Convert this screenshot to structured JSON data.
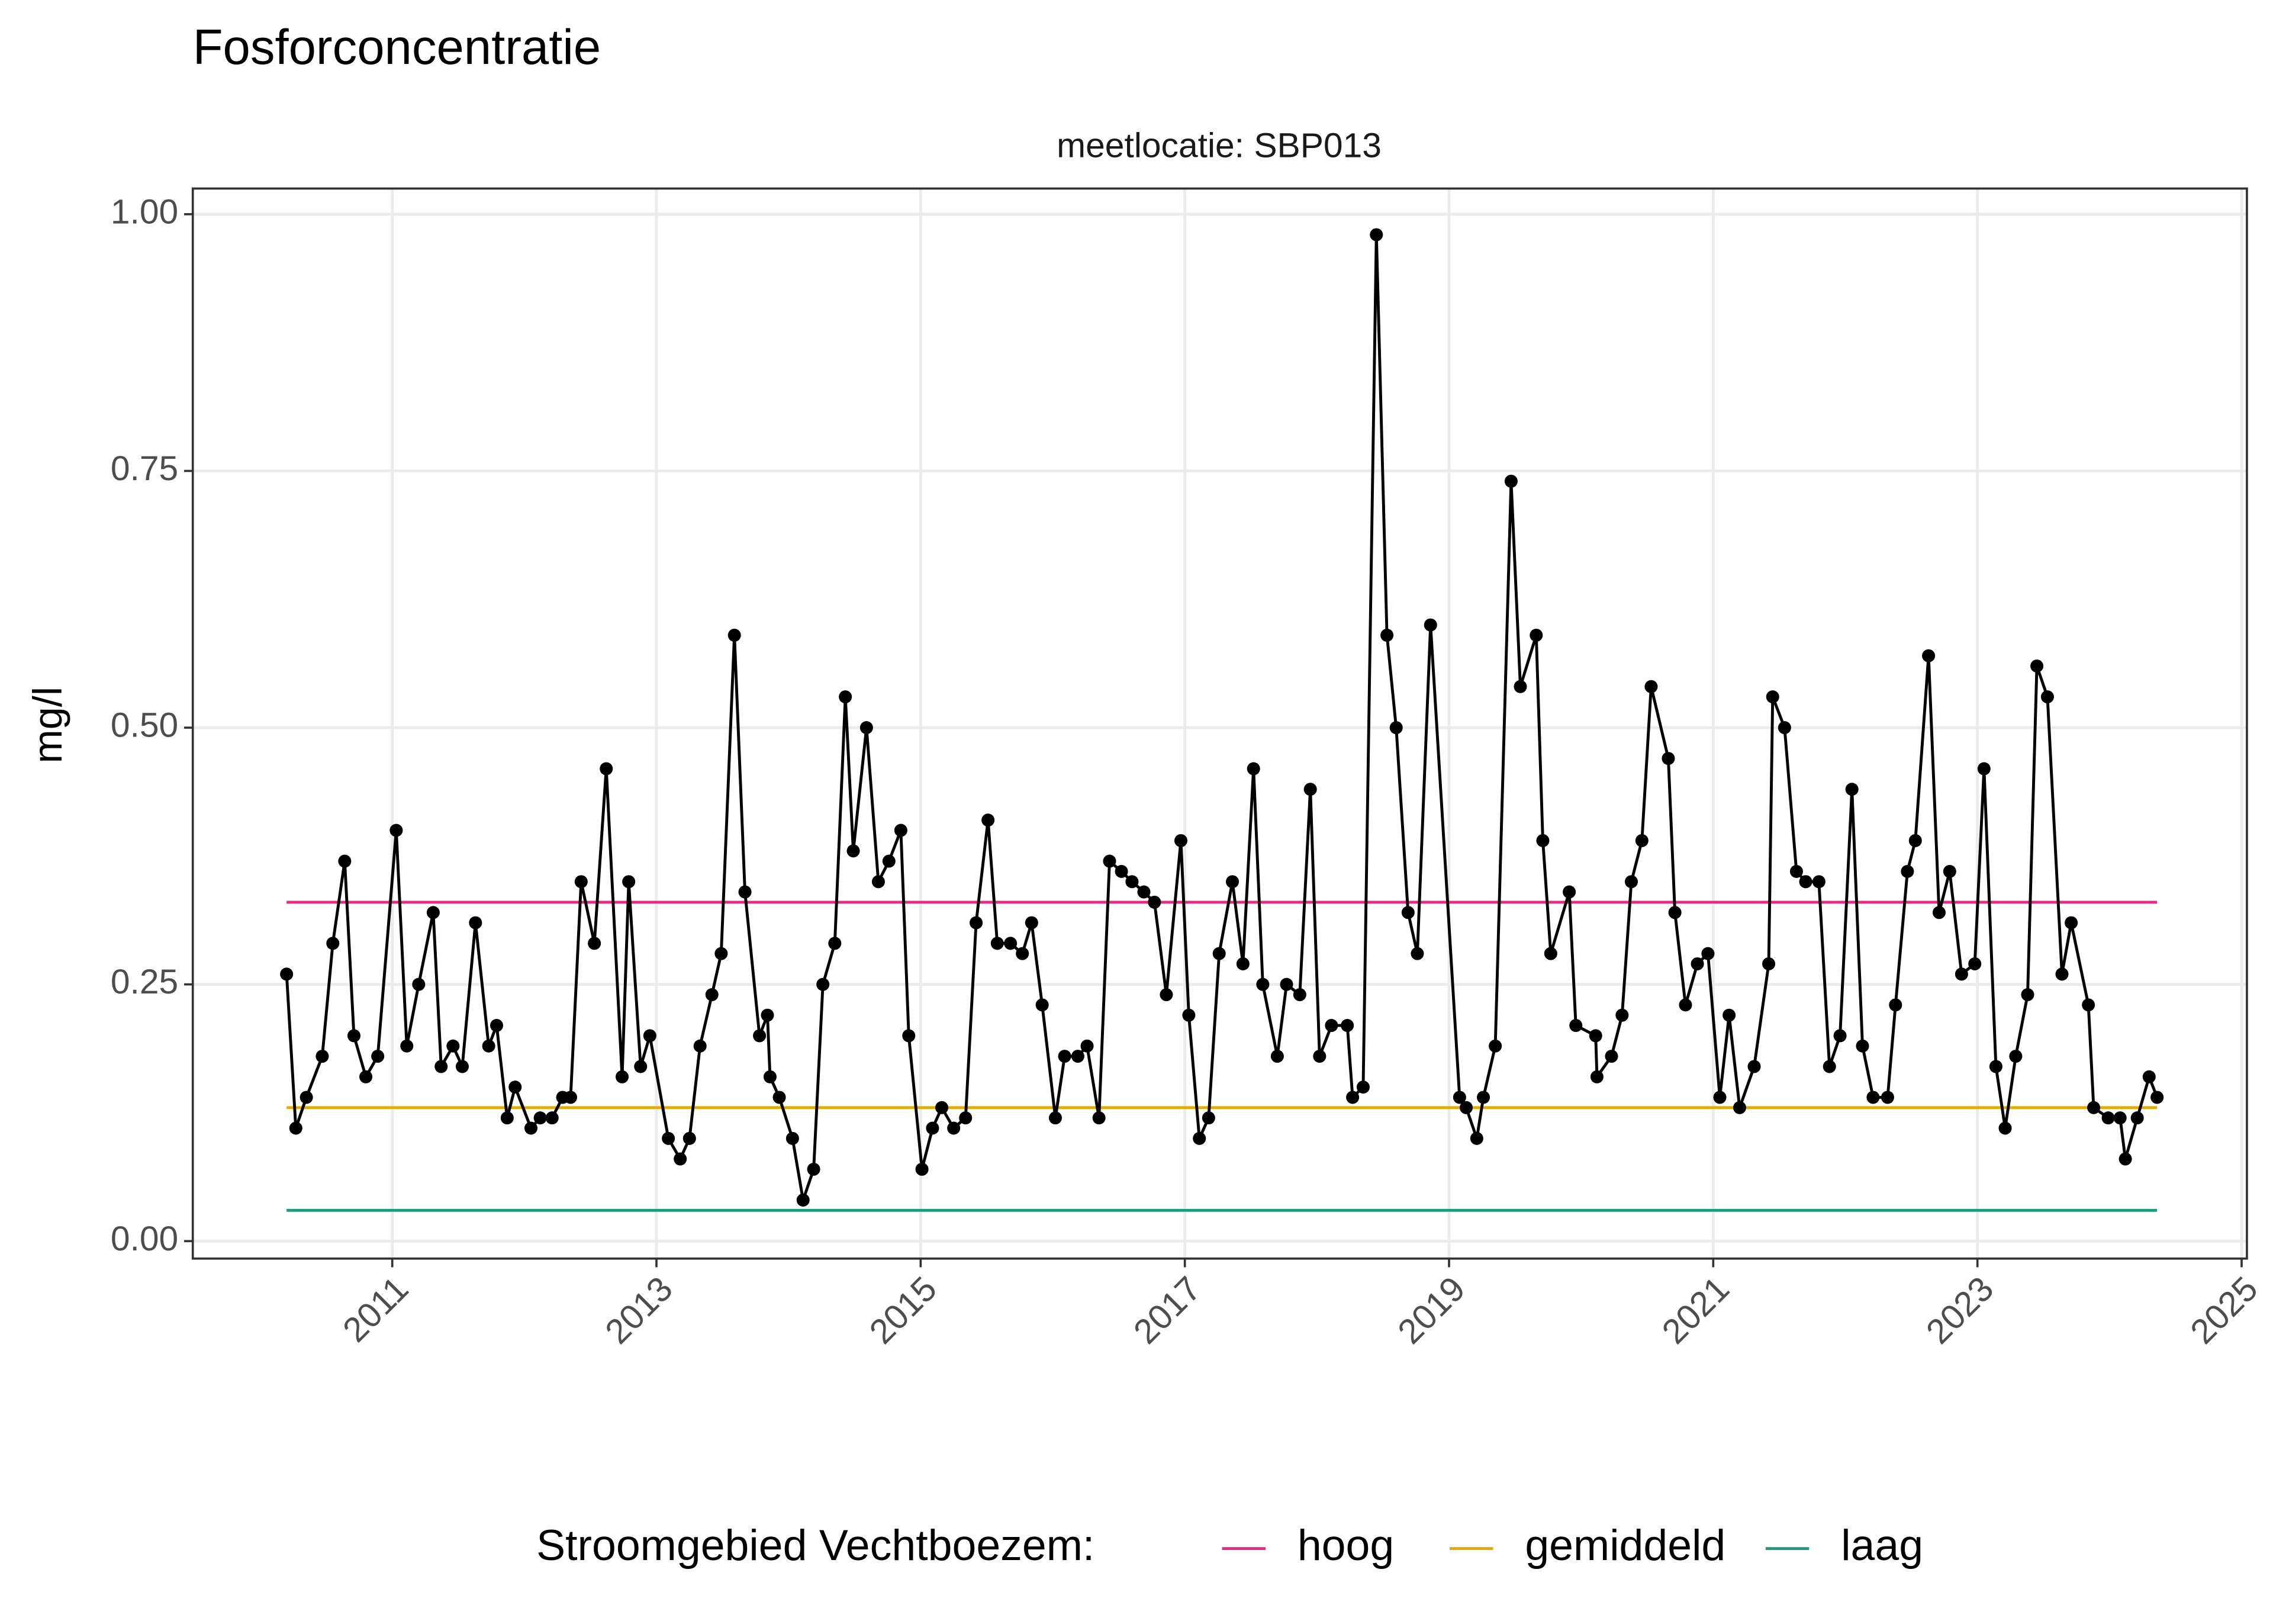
{
  "chart_data": {
    "type": "line",
    "title": "Fosforconcentratie",
    "subtitle": "meetlocatie: SBP013",
    "y_label": "mg/l",
    "legend_title": "Stroomgebied Vechtboezem:",
    "color": "#000000",
    "x": [
      2010.2,
      2010.27,
      2010.35,
      2010.47,
      2010.55,
      2010.64,
      2010.71,
      2010.8,
      2010.89,
      2011.03,
      2011.11,
      2011.2,
      2011.31,
      2011.37,
      2011.46,
      2011.53,
      2011.63,
      2011.73,
      2011.79,
      2011.87,
      2011.93,
      2012.05,
      2012.12,
      2012.21,
      2012.29,
      2012.35,
      2012.43,
      2012.53,
      2012.62,
      2012.74,
      2012.79,
      2012.88,
      2012.95,
      2013.09,
      2013.18,
      2013.25,
      2013.33,
      2013.42,
      2013.49,
      2013.59,
      2013.67,
      2013.78,
      2013.84,
      2013.86,
      2013.93,
      2014.03,
      2014.11,
      2014.19,
      2014.26,
      2014.35,
      2014.43,
      2014.49,
      2014.59,
      2014.68,
      2014.76,
      2014.85,
      2014.91,
      2015.01,
      2015.09,
      2015.16,
      2015.25,
      2015.34,
      2015.42,
      2015.51,
      2015.58,
      2015.68,
      2015.77,
      2015.84,
      2015.92,
      2016.02,
      2016.09,
      2016.19,
      2016.26,
      2016.35,
      2016.43,
      2016.52,
      2016.6,
      2016.69,
      2016.77,
      2016.86,
      2016.97,
      2017.03,
      2017.11,
      2017.18,
      2017.26,
      2017.36,
      2017.44,
      2017.52,
      2017.59,
      2017.7,
      2017.77,
      2017.87,
      2017.95,
      2018.02,
      2018.11,
      2018.23,
      2018.27,
      2018.35,
      2018.45,
      2018.53,
      2018.6,
      2018.69,
      2018.76,
      2018.86,
      2019.08,
      2019.13,
      2019.21,
      2019.26,
      2019.35,
      2019.47,
      2019.54,
      2019.66,
      2019.71,
      2019.77,
      2019.91,
      2019.96,
      2020.11,
      2020.12,
      2020.23,
      2020.31,
      2020.38,
      2020.46,
      2020.53,
      2020.66,
      2020.71,
      2020.79,
      2020.88,
      2020.96,
      2021.05,
      2021.12,
      2021.2,
      2021.31,
      2021.42,
      2021.45,
      2021.54,
      2021.63,
      2021.7,
      2021.8,
      2021.88,
      2021.96,
      2022.05,
      2022.13,
      2022.21,
      2022.32,
      2022.38,
      2022.47,
      2022.53,
      2022.63,
      2022.71,
      2022.79,
      2022.88,
      2022.98,
      2023.05,
      2023.14,
      2023.21,
      2023.29,
      2023.38,
      2023.45,
      2023.53,
      2023.64,
      2023.71,
      2023.84,
      2023.88,
      2023.99,
      2024.08,
      2024.12,
      2024.21,
      2024.3,
      2024.36
    ],
    "values": [
      0.26,
      0.11,
      0.14,
      0.18,
      0.29,
      0.37,
      0.2,
      0.16,
      0.18,
      0.4,
      0.19,
      0.25,
      0.32,
      0.17,
      0.19,
      0.17,
      0.31,
      0.19,
      0.21,
      0.12,
      0.15,
      0.11,
      0.12,
      0.12,
      0.14,
      0.14,
      0.35,
      0.29,
      0.46,
      0.16,
      0.35,
      0.17,
      0.2,
      0.1,
      0.08,
      0.1,
      0.19,
      0.24,
      0.28,
      0.59,
      0.34,
      0.2,
      0.22,
      0.16,
      0.14,
      0.1,
      0.04,
      0.07,
      0.25,
      0.29,
      0.53,
      0.38,
      0.5,
      0.35,
      0.37,
      0.4,
      0.2,
      0.07,
      0.11,
      0.13,
      0.11,
      0.12,
      0.31,
      0.41,
      0.29,
      0.29,
      0.28,
      0.31,
      0.23,
      0.12,
      0.18,
      0.18,
      0.19,
      0.12,
      0.37,
      0.36,
      0.35,
      0.34,
      0.33,
      0.24,
      0.39,
      0.22,
      0.1,
      0.12,
      0.28,
      0.35,
      0.27,
      0.46,
      0.25,
      0.18,
      0.25,
      0.24,
      0.44,
      0.18,
      0.21,
      0.21,
      0.14,
      0.15,
      0.98,
      0.59,
      0.5,
      0.32,
      0.28,
      0.6,
      0.14,
      0.13,
      0.1,
      0.14,
      0.19,
      0.74,
      0.54,
      0.59,
      0.39,
      0.28,
      0.34,
      0.21,
      0.2,
      0.16,
      0.18,
      0.22,
      0.35,
      0.39,
      0.54,
      0.47,
      0.32,
      0.23,
      0.27,
      0.28,
      0.14,
      0.22,
      0.13,
      0.17,
      0.27,
      0.53,
      0.5,
      0.36,
      0.35,
      0.35,
      0.17,
      0.2,
      0.44,
      0.19,
      0.14,
      0.14,
      0.23,
      0.36,
      0.39,
      0.57,
      0.32,
      0.36,
      0.26,
      0.27,
      0.46,
      0.17,
      0.11,
      0.18,
      0.24,
      0.56,
      0.53,
      0.26,
      0.31,
      0.23,
      0.13,
      0.12,
      0.12,
      0.08,
      0.12,
      0.16,
      0.14
    ],
    "reference_lines": [
      {
        "name": "hoog",
        "color": "#e7298a",
        "value": 0.33
      },
      {
        "name": "gemiddeld",
        "color": "#e6ab02",
        "value": 0.13
      },
      {
        "name": "laag",
        "color": "#1b9e77",
        "value": 0.03
      }
    ],
    "xlim": [
      2009.49,
      2025.04
    ],
    "xticks": [
      2011,
      2013,
      2015,
      2017,
      2019,
      2021,
      2023,
      2025
    ],
    "ylim": [
      -0.017,
      1.025
    ],
    "yticks": [
      {
        "value": 0,
        "label": "0.00"
      },
      {
        "value": 0.25,
        "label": "0.25"
      },
      {
        "value": 0.5,
        "label": "0.50"
      },
      {
        "value": 0.75,
        "label": "0.75"
      },
      {
        "value": 1,
        "label": "1.00"
      }
    ],
    "grid": true
  }
}
